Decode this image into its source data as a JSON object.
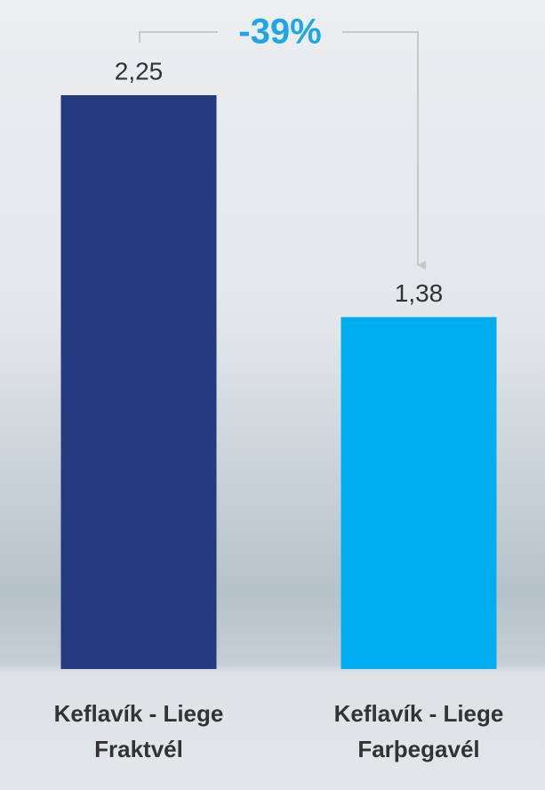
{
  "chart_data": {
    "type": "bar",
    "categories": [
      "Keflavík - Liege Fraktvél",
      "Keflavík - Liege Farþegavél"
    ],
    "values": [
      2.25,
      1.38
    ],
    "value_labels": [
      "2,25",
      "1,38"
    ],
    "colors": [
      "#253a7e",
      "#00aeef"
    ],
    "annotation": "-39%"
  }
}
